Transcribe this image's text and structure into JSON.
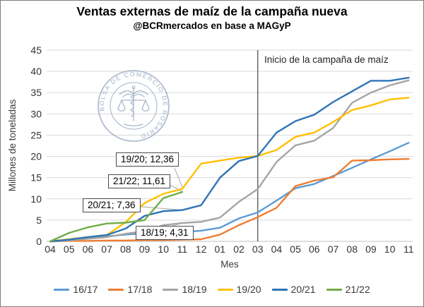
{
  "title": "Ventas externas de maíz de la campaña nueva",
  "subtitle": "@BCRmercados en base a MAGyP",
  "logo": {
    "text": "BOLSA DE COMERCIO DE ROSARIO"
  },
  "colors": {
    "gridline": "#d9d9d9",
    "axis_line": "#bfbfbf",
    "marker_line": "#6e6e6e",
    "leader_line": "#a6a6a6",
    "tick_text": "#333333"
  },
  "chart_data": {
    "type": "line",
    "title": "Ventas externas de maíz de la campaña nueva",
    "subtitle": "@BCRmercados en base a MAGyP",
    "xlabel": "Mes",
    "ylabel": "Millones de toneladas",
    "ylim": [
      0,
      45
    ],
    "ytick_step": 5,
    "grid": true,
    "legend_position": "bottom",
    "categories": [
      "04",
      "05",
      "06",
      "07",
      "08",
      "09",
      "10",
      "11",
      "12",
      "01",
      "02",
      "03",
      "04",
      "05",
      "06",
      "07",
      "08",
      "09",
      "10",
      "11"
    ],
    "series": [
      {
        "name": "16/17",
        "color": "#5B9BD5",
        "values": [
          0,
          0.3,
          0.8,
          1.2,
          1.6,
          1.9,
          2.1,
          2.2,
          2.5,
          3.2,
          5.4,
          6.8,
          9.6,
          12.5,
          13.5,
          15.4,
          17.3,
          19.3,
          21.2,
          23.2
        ]
      },
      {
        "name": "17/18",
        "color": "#ED7D31",
        "values": [
          0,
          0.1,
          0.1,
          0.2,
          0.2,
          0.3,
          0.3,
          0.4,
          0.5,
          1.6,
          3.8,
          5.7,
          7.9,
          13.0,
          14.3,
          15.1,
          19.0,
          19.1,
          19.3,
          19.4
        ]
      },
      {
        "name": "18/19",
        "color": "#A5A5A5",
        "values": [
          0,
          0.2,
          0.6,
          1.0,
          1.8,
          2.4,
          3.8,
          4.31,
          4.6,
          5.6,
          9.3,
          12.3,
          18.7,
          22.6,
          23.7,
          26.7,
          32.6,
          35.0,
          36.7,
          37.9
        ]
      },
      {
        "name": "19/20",
        "color": "#FFC000",
        "values": [
          0,
          0.5,
          1.0,
          1.5,
          4.5,
          9.0,
          11.2,
          12.36,
          18.3,
          19.0,
          19.7,
          20.1,
          21.5,
          24.6,
          25.6,
          28.1,
          30.9,
          32.0,
          33.4,
          33.8
        ]
      },
      {
        "name": "20/21",
        "color": "#2E75B6",
        "values": [
          0,
          0.4,
          1.0,
          1.5,
          3.0,
          6.0,
          7.1,
          7.36,
          8.5,
          15.0,
          18.9,
          20.1,
          25.6,
          28.3,
          29.8,
          32.8,
          35.3,
          37.8,
          37.8,
          38.5
        ]
      },
      {
        "name": "21/22",
        "color": "#70AD47",
        "values": [
          0,
          2.0,
          3.3,
          4.2,
          4.4,
          5.0,
          10.2,
          11.61
        ]
      }
    ],
    "marker_line": {
      "x_index": 11,
      "x_label": "03",
      "label": "Inicio de la campaña de maíz"
    },
    "annotations": [
      {
        "label": "19/20; 12,36",
        "series": "19/20",
        "x_label": "11",
        "x_index": 7,
        "value": 12.36
      },
      {
        "label": "21/22; 11,61",
        "series": "21/22",
        "x_label": "11",
        "x_index": 7,
        "value": 11.61
      },
      {
        "label": "20/21; 7,36",
        "series": "20/21",
        "x_label": "11",
        "x_index": 7,
        "value": 7.36
      },
      {
        "label": "18/19; 4,31",
        "series": "18/19",
        "x_label": "11",
        "x_index": 7,
        "value": 4.31
      }
    ]
  }
}
